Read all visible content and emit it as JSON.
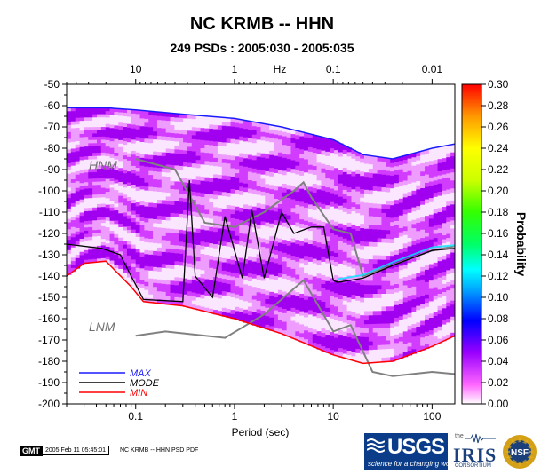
{
  "chart_data": {
    "type": "heatmap",
    "title": "NC KRMB -- HHN",
    "subtitle": "249 PSDs : 2005:030 - 2005:035",
    "xlabel": "Period (sec)",
    "x_scale": "log",
    "xlim": [
      0.02,
      170
    ],
    "x_ticks": [
      "0.1",
      "1",
      "10",
      "100"
    ],
    "top_axis_label": "Hz",
    "top_ticks": [
      "10",
      "1",
      "0.1",
      "0.01"
    ],
    "ylim": [
      -200,
      -50
    ],
    "y_ticks": [
      "-50",
      "-60",
      "-70",
      "-80",
      "-90",
      "-100",
      "-110",
      "-120",
      "-130",
      "-140",
      "-150",
      "-160",
      "-170",
      "-180",
      "-190",
      "-200"
    ],
    "colorbar": {
      "label": "Probability",
      "range": [
        0,
        0.3
      ],
      "ticks": [
        "0.00",
        "0.02",
        "0.04",
        "0.06",
        "0.08",
        "0.10",
        "0.12",
        "0.14",
        "0.16",
        "0.18",
        "0.20",
        "0.22",
        "0.24",
        "0.26",
        "0.28",
        "0.30"
      ]
    },
    "annotations": [
      "HNM",
      "LNM"
    ],
    "series": [
      {
        "name": "MAX",
        "color": "#1a1aff",
        "x": [
          0.02,
          0.05,
          0.1,
          0.3,
          1,
          3,
          10,
          20,
          40,
          100,
          170
        ],
        "y": [
          -61,
          -61,
          -62,
          -64,
          -66,
          -70,
          -76,
          -83,
          -85,
          -80,
          -78
        ]
      },
      {
        "name": "MODE",
        "color": "#000000",
        "x": [
          0.02,
          0.045,
          0.07,
          0.09,
          0.12,
          0.3,
          0.35,
          0.4,
          0.6,
          0.8,
          1.2,
          1.5,
          2,
          3,
          4,
          6,
          8,
          10,
          11,
          20,
          40,
          100,
          170
        ],
        "y": [
          -125,
          -127,
          -130,
          -140,
          -151,
          -152,
          -95,
          -140,
          -150,
          -112,
          -141,
          -109,
          -141,
          -110,
          -120,
          -117,
          -117,
          -142,
          -143,
          -141,
          -135,
          -128,
          -127
        ]
      },
      {
        "name": "MIN",
        "color": "#ff0000",
        "x": [
          0.02,
          0.03,
          0.05,
          0.09,
          0.12,
          0.3,
          1,
          3,
          10,
          20,
          40,
          100,
          170
        ],
        "y": [
          -140,
          -134,
          -133,
          -145,
          -152,
          -154,
          -160,
          -167,
          -177,
          -181,
          -180,
          -173,
          -168
        ]
      },
      {
        "name": "HNM",
        "color": "#808080",
        "x": [
          0.1,
          0.25,
          0.5,
          1,
          2,
          4,
          5,
          6,
          10,
          15,
          20,
          100,
          170
        ],
        "y": [
          -85,
          -90,
          -115,
          -117,
          -110,
          -100,
          -96,
          -103,
          -118,
          -120,
          -140,
          -128,
          -126
        ]
      },
      {
        "name": "LNM",
        "color": "#808080",
        "x": [
          0.1,
          0.2,
          0.8,
          2,
          5,
          10,
          15,
          25,
          40,
          100,
          170
        ],
        "y": [
          -168,
          -166,
          -169,
          -158,
          -142,
          -166,
          -163,
          -185,
          -187,
          -185,
          -186
        ]
      }
    ],
    "legend": {
      "placement": "bottom-left",
      "items": [
        "MAX",
        "MODE",
        "MIN"
      ]
    }
  },
  "footer": {
    "gmt_badge": "GMT",
    "timestamp": "2005 Feb 11 05:45:01",
    "caption": "NC KRMB -- HHN PSD PDF"
  },
  "logos": {
    "usgs": "USGS",
    "usgs_tagline": "science for a changing world",
    "iris_the": "the",
    "iris": "IRIS",
    "iris_sub": "CONSORTIUM",
    "nsf": "NSF"
  }
}
